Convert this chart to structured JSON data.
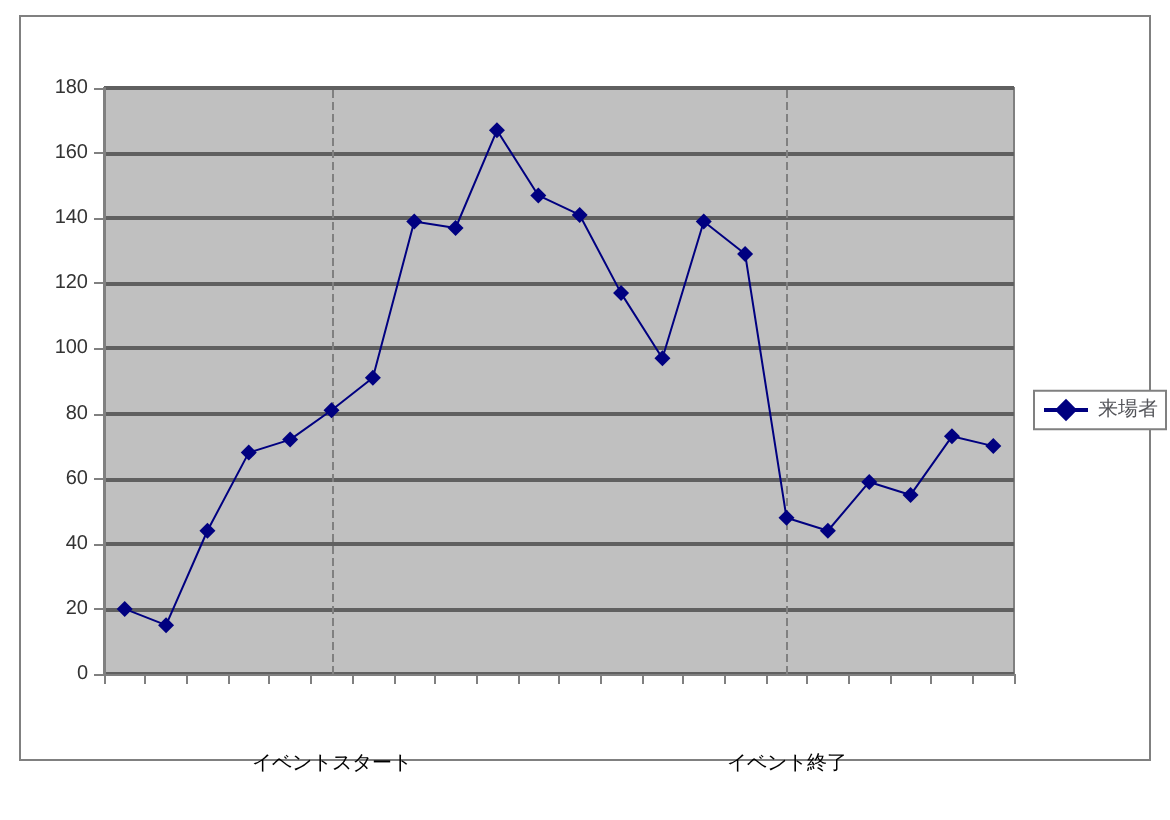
{
  "chart_data": {
    "type": "line",
    "categories": [
      null,
      null,
      null,
      null,
      null,
      null,
      null,
      null,
      null,
      null,
      null,
      null,
      null,
      null,
      null,
      null,
      null,
      null,
      null,
      null,
      null,
      null
    ],
    "series": [
      {
        "name": "来場者",
        "color": "#000080",
        "values": [
          20,
          15,
          44,
          68,
          72,
          81,
          91,
          139,
          137,
          167,
          147,
          141,
          117,
          97,
          139,
          129,
          48,
          44,
          59,
          55,
          73,
          70
        ]
      }
    ],
    "ylim": [
      0,
      180
    ],
    "yticks": [
      0,
      20,
      40,
      60,
      80,
      100,
      120,
      140,
      160,
      180
    ],
    "grid": "y",
    "legend": "right",
    "marker": "diamond",
    "line_style": "solid",
    "annotations": [
      "イベントスタート",
      "イベント終了"
    ]
  }
}
